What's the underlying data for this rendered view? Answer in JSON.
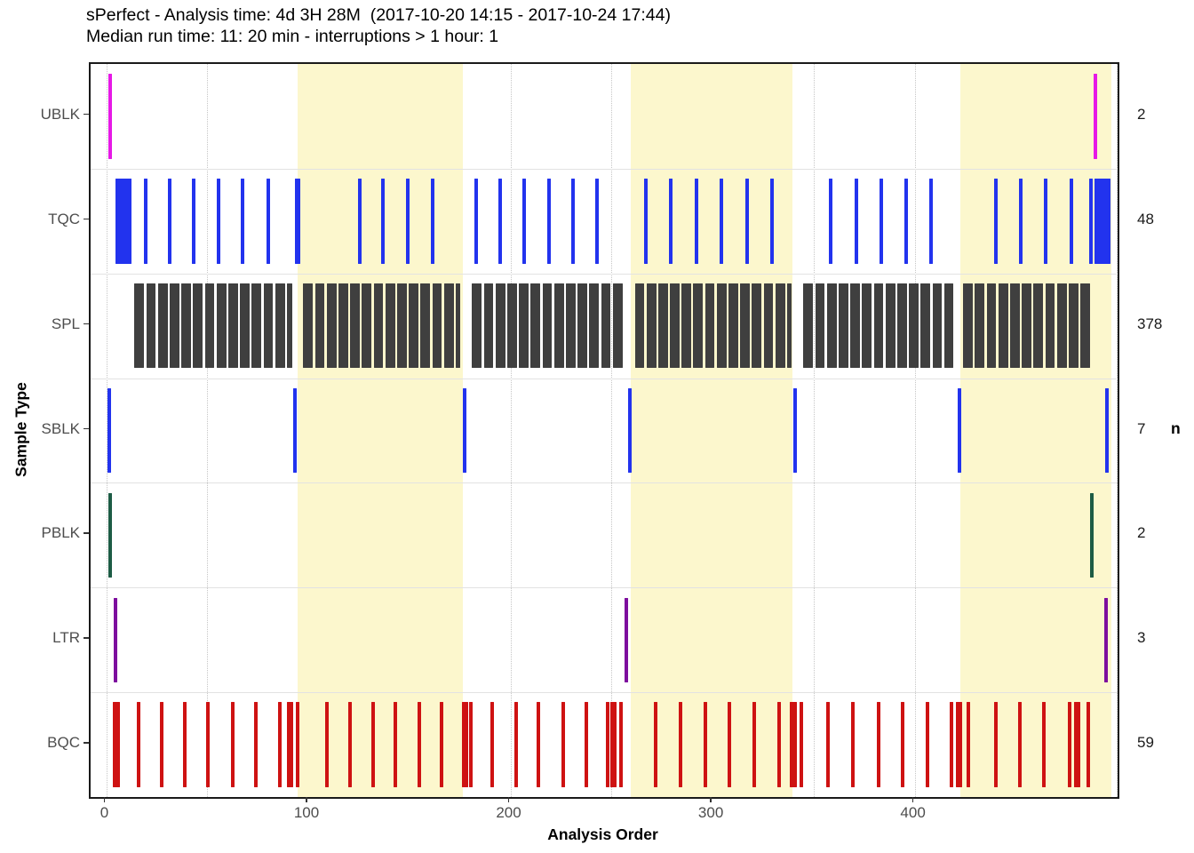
{
  "title": {
    "line1": "sPerfect - Analysis time: 4d 3H 28M  (2017-10-20 14:15 - 2017-10-24 17:44)",
    "line2": "Median run time: 11: 20 min - interruptions > 1 hour: 1"
  },
  "x_axis": {
    "label": "Analysis Order",
    "ticks": [
      0,
      100,
      200,
      300,
      400
    ]
  },
  "y_axis": {
    "label": "Sample Type"
  },
  "right_axis": {
    "label": "n"
  },
  "colors": {
    "band_fill": "#FCF7CD",
    "gridline": "#C6C6C6",
    "panel_border": "#1A1A1A",
    "ublk": "#E619E6",
    "tqc": "#2233EE",
    "spl": "#3F3F3F",
    "sblk": "#2233EE",
    "pblk": "#1D5C45",
    "ltr": "#7D0E9E",
    "bqc": "#CE1212"
  },
  "chart_data": {
    "type": "event-tick-timeline",
    "title": "sPerfect - Analysis time: 4d 3H 28M  (2017-10-20 14:15 - 2017-10-24 17:44)",
    "subtitle": "Median run time: 11: 20 min - interruptions > 1 hour: 1",
    "xlabel": "Analysis Order",
    "ylabel": "Sample Type",
    "right_label": "n",
    "x_min": -7.7,
    "x_max": 500.4,
    "gridlines": [
      0,
      50,
      100,
      150,
      200,
      250,
      300,
      350,
      400,
      450,
      500
    ],
    "bands": [
      [
        94.7,
        176.3
      ],
      [
        259.7,
        339.6
      ],
      [
        422.6,
        497.4
      ]
    ],
    "rows": [
      {
        "label": "UBLK",
        "n": 2,
        "color_key": "ublk",
        "marks": [
          [
            2,
            1.8
          ],
          [
            489.3,
            1.8
          ]
        ]
      },
      {
        "label": "TQC",
        "n": 48,
        "color_key": "tqc",
        "marks": [
          [
            8.5,
            8
          ],
          [
            19.5,
            1.8
          ],
          [
            31.5,
            1.8
          ],
          [
            43.5,
            1.8
          ],
          [
            55.5,
            1.8
          ],
          [
            67.5,
            1.8
          ],
          [
            80,
            1.8
          ],
          [
            94.7,
            3
          ],
          [
            125.5,
            1.8
          ],
          [
            137,
            1.8
          ],
          [
            149,
            1.8
          ],
          [
            161.5,
            1.8
          ],
          [
            183,
            1.8
          ],
          [
            195,
            1.8
          ],
          [
            207,
            1.8
          ],
          [
            219,
            1.8
          ],
          [
            231,
            1.8
          ],
          [
            243,
            1.8
          ],
          [
            267,
            1.8
          ],
          [
            279.5,
            1.8
          ],
          [
            292,
            1.8
          ],
          [
            304.5,
            1.8
          ],
          [
            317,
            1.8
          ],
          [
            329.5,
            1.8
          ],
          [
            358.5,
            1.8
          ],
          [
            371,
            1.8
          ],
          [
            383.5,
            1.8
          ],
          [
            396,
            1.8
          ],
          [
            408,
            1.8
          ],
          [
            440,
            1.8
          ],
          [
            452.5,
            1.8
          ],
          [
            465,
            1.8
          ],
          [
            477.5,
            1.8
          ],
          [
            487,
            1.8
          ],
          [
            493,
            8
          ]
        ]
      },
      {
        "label": "SPL",
        "n": 378,
        "color_key": "spl",
        "blocks": [
          [
            14,
            92
          ],
          [
            97.5,
            175
          ],
          [
            181,
            256
          ],
          [
            261.5,
            339
          ],
          [
            345,
            419
          ],
          [
            424,
            487.5
          ]
        ],
        "run_w": 4.8,
        "gap_w": 1.0
      },
      {
        "label": "SBLK",
        "n": 7,
        "color_key": "sblk",
        "marks": [
          [
            1.5,
            1.8
          ],
          [
            93.5,
            1.8
          ],
          [
            177.5,
            1.8
          ],
          [
            259,
            1.8
          ],
          [
            341,
            1.8
          ],
          [
            422,
            1.8
          ],
          [
            495,
            1.8
          ]
        ]
      },
      {
        "label": "PBLK",
        "n": 2,
        "color_key": "pblk",
        "marks": [
          [
            2,
            1.8
          ],
          [
            487.5,
            1.8
          ]
        ]
      },
      {
        "label": "LTR",
        "n": 3,
        "color_key": "ltr",
        "marks": [
          [
            4.5,
            1.8
          ],
          [
            257.5,
            1.8
          ],
          [
            494.7,
            1.8
          ]
        ]
      },
      {
        "label": "BQC",
        "n": 59,
        "color_key": "bqc",
        "marks": [
          [
            5,
            3.2
          ],
          [
            16,
            1.8
          ],
          [
            27.5,
            1.8
          ],
          [
            39,
            1.8
          ],
          [
            50.5,
            1.8
          ],
          [
            62.5,
            1.8
          ],
          [
            74,
            1.8
          ],
          [
            86,
            1.8
          ],
          [
            91,
            3.2
          ],
          [
            94.5,
            1.8
          ],
          [
            109,
            1.8
          ],
          [
            120.5,
            1.8
          ],
          [
            132,
            1.8
          ],
          [
            143,
            1.8
          ],
          [
            155,
            1.8
          ],
          [
            166,
            1.8
          ],
          [
            177.5,
            3.2
          ],
          [
            180.5,
            1.8
          ],
          [
            191,
            1.8
          ],
          [
            203,
            1.8
          ],
          [
            214,
            1.8
          ],
          [
            226,
            1.8
          ],
          [
            237.5,
            1.8
          ],
          [
            248,
            1.8
          ],
          [
            251,
            3.2
          ],
          [
            254.5,
            1.8
          ],
          [
            272,
            1.8
          ],
          [
            284,
            1.8
          ],
          [
            296.5,
            1.8
          ],
          [
            308.5,
            1.8
          ],
          [
            320.5,
            1.8
          ],
          [
            333,
            1.8
          ],
          [
            340,
            3.2
          ],
          [
            344,
            1.8
          ],
          [
            357,
            1.8
          ],
          [
            369.5,
            1.8
          ],
          [
            382,
            1.8
          ],
          [
            394,
            1.8
          ],
          [
            406.5,
            1.8
          ],
          [
            418,
            1.8
          ],
          [
            422,
            3.2
          ],
          [
            426.5,
            1.8
          ],
          [
            440,
            1.8
          ],
          [
            452,
            1.8
          ],
          [
            464,
            1.8
          ],
          [
            476.5,
            1.8
          ],
          [
            480.5,
            3.2
          ],
          [
            486,
            1.8
          ]
        ]
      }
    ]
  }
}
